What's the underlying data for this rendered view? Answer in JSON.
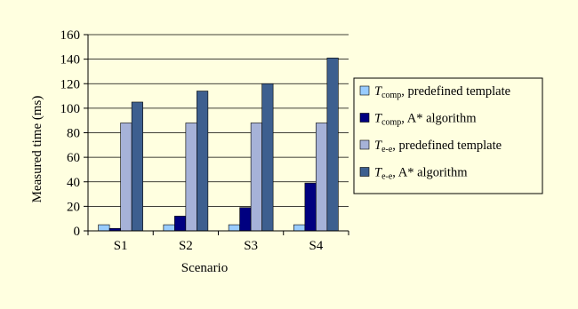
{
  "chart_data": {
    "type": "bar",
    "title": "",
    "xlabel": "Scenario",
    "ylabel": "Measured time (ms)",
    "categories": [
      "S1",
      "S2",
      "S3",
      "S4"
    ],
    "ylim": [
      0,
      160
    ],
    "yticks": [
      "0",
      "20",
      "40",
      "60",
      "80",
      "100",
      "120",
      "140",
      "160"
    ],
    "grid": true,
    "legend_position": "right",
    "series": [
      {
        "name": "predefined template",
        "symbol": "T",
        "subscript": "comp",
        "color": "#99ccff",
        "values": [
          5,
          5,
          5,
          5
        ]
      },
      {
        "name": "A* algorithm",
        "symbol": "T",
        "subscript": "comp",
        "color": "#000080",
        "values": [
          2,
          12,
          19,
          39
        ]
      },
      {
        "name": "predefined template",
        "symbol": "T",
        "subscript": "e-e",
        "color": "#a6b2d8",
        "values": [
          88,
          88,
          88,
          88
        ]
      },
      {
        "name": "A* algorithm",
        "symbol": "T",
        "subscript": "e-e",
        "color": "#3d5f8f",
        "values": [
          105,
          114,
          120,
          141
        ]
      }
    ]
  }
}
